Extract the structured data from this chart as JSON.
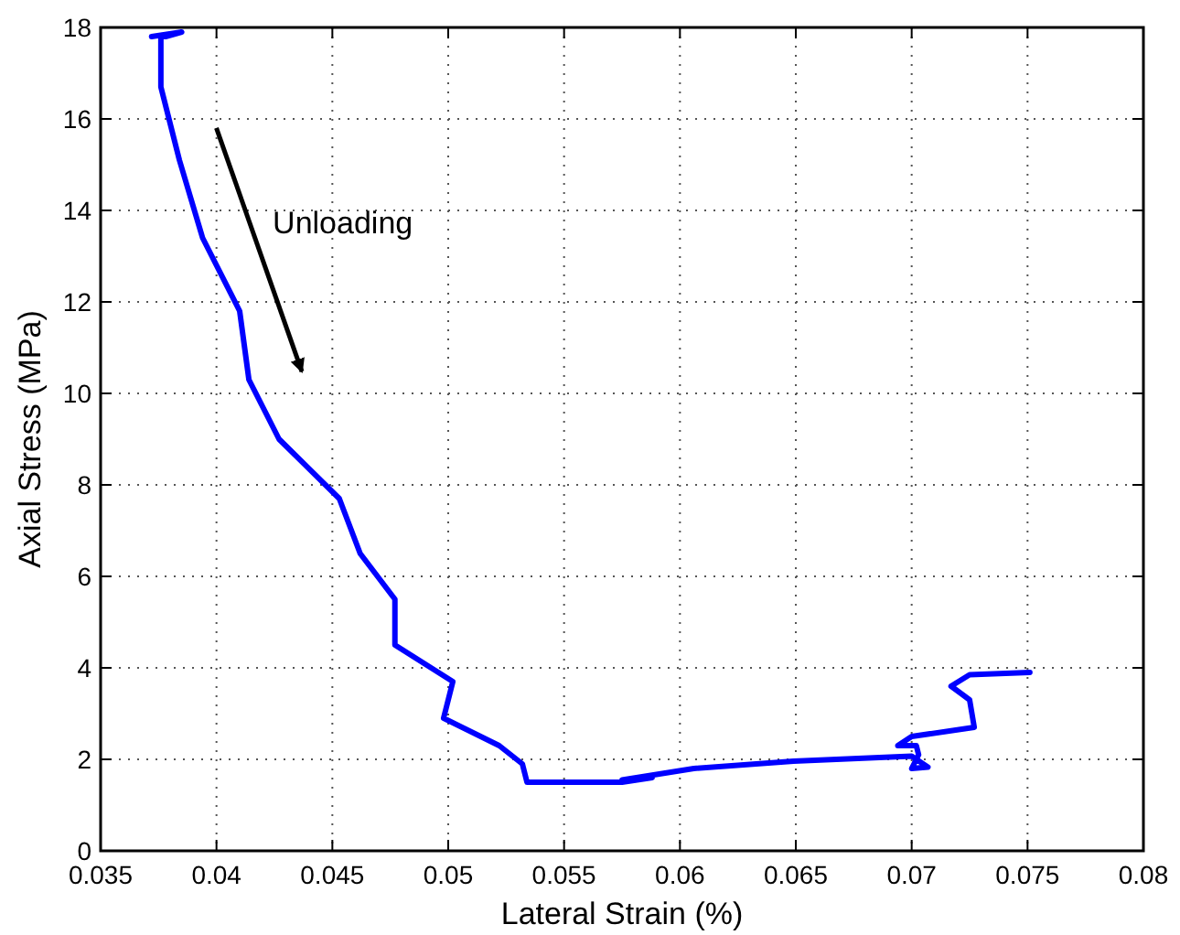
{
  "chart_data": {
    "type": "line",
    "xlabel": "Lateral Strain (%)",
    "ylabel": "Axial Stress (MPa)",
    "annotations": [
      "Unloading"
    ],
    "xlim": [
      0.035,
      0.08
    ],
    "xticks": [
      0.035,
      0.04,
      0.045,
      0.05,
      0.055,
      0.06,
      0.065,
      0.07,
      0.075,
      0.08
    ],
    "ylim": [
      0,
      18
    ],
    "yticks": [
      0,
      2,
      4,
      6,
      8,
      10,
      12,
      14,
      16,
      18
    ],
    "grid": true,
    "line_style": "solid",
    "series": [
      {
        "color": "#0000ff",
        "x": [
          0.0372,
          0.0385,
          0.0378,
          0.0376,
          0.0376,
          0.0384,
          0.0394,
          0.041,
          0.0414,
          0.0427,
          0.0453,
          0.0462,
          0.0477,
          0.0477,
          0.0502,
          0.0498,
          0.0522,
          0.0532,
          0.0534,
          0.0575,
          0.0588,
          0.0575,
          0.0606,
          0.0649,
          0.07,
          0.0707,
          0.07,
          0.0703,
          0.0702,
          0.0694,
          0.07,
          0.0727,
          0.0725,
          0.0717,
          0.0725,
          0.0751
        ],
        "values": [
          17.8,
          17.9,
          17.8,
          17.8,
          16.7,
          15.1,
          13.4,
          11.8,
          10.3,
          9.0,
          7.7,
          6.5,
          5.5,
          4.5,
          3.7,
          2.9,
          2.3,
          1.9,
          1.5,
          1.5,
          1.6,
          1.55,
          1.8,
          1.96,
          2.07,
          1.83,
          1.8,
          2.1,
          2.3,
          2.3,
          2.5,
          2.7,
          3.3,
          3.6,
          3.85,
          3.9
        ]
      }
    ]
  }
}
